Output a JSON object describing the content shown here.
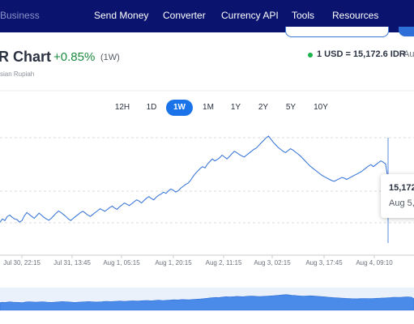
{
  "nav": {
    "brand": "Business",
    "items": [
      "Send Money",
      "Converter",
      "Currency API",
      "Tools",
      "Resources"
    ]
  },
  "header": {
    "title": "R Chart",
    "change": "+0.85%",
    "period": "(1W)",
    "subtitle": "sian Rupiah",
    "rate": "1 USD = 15,172.6 IDR",
    "rate_date": "Au"
  },
  "ranges": {
    "items": [
      "12H",
      "1D",
      "1W",
      "1M",
      "1Y",
      "2Y",
      "5Y",
      "10Y"
    ],
    "active": "1W"
  },
  "tooltip": {
    "value": "15,172",
    "date": "Aug 5,"
  },
  "colors": {
    "nav_bg": "#0a146e",
    "line": "#2f6fd6",
    "positive": "#1c8a3e",
    "active": "#1a73e8"
  },
  "chart_data": {
    "type": "line",
    "x_labels": [
      "Jul 30, 22:15",
      "Jul 31, 13:45",
      "Aug 1, 05:15",
      "Aug 1, 20:15",
      "Aug 2, 11:15",
      "Aug 3, 02:15",
      "Aug 3, 17:45",
      "Aug 4, 09:10"
    ],
    "series": [
      {
        "values": [
          15040,
          15050,
          15045,
          15058,
          15062,
          15055,
          15050,
          15048,
          15040,
          15045,
          15060,
          15070,
          15064,
          15058,
          15052,
          15060,
          15068,
          15062,
          15055,
          15050,
          15046,
          15052,
          15060,
          15068,
          15075,
          15070,
          15064,
          15058,
          15050,
          15045,
          15052,
          15058,
          15064,
          15070,
          15074,
          15068,
          15062,
          15058,
          15064,
          15070,
          15076,
          15082,
          15078,
          15074,
          15080,
          15086,
          15090,
          15084,
          15080,
          15088,
          15094,
          15100,
          15096,
          15092,
          15098,
          15104,
          15110,
          15106,
          15100,
          15108,
          15115,
          15120,
          15114,
          15110,
          15118,
          15124,
          15128,
          15134,
          15130,
          15138,
          15144,
          15140,
          15134,
          15138,
          15146,
          15152,
          15158,
          15162,
          15170,
          15182,
          15192,
          15200,
          15208,
          15214,
          15210,
          15222,
          15230,
          15238,
          15232,
          15236,
          15242,
          15250,
          15244,
          15238,
          15246,
          15254,
          15262,
          15258,
          15252,
          15248,
          15244,
          15250,
          15256,
          15262,
          15268,
          15272,
          15280,
          15288,
          15296,
          15304,
          15310,
          15300,
          15290,
          15282,
          15274,
          15268,
          15262,
          15258,
          15264,
          15270,
          15266,
          15260,
          15254,
          15248,
          15240,
          15232,
          15224,
          15216,
          15210,
          15204,
          15198,
          15192,
          15186,
          15182,
          15178,
          15174,
          15170,
          15168,
          15172,
          15176,
          15180,
          15178,
          15174,
          15178,
          15182,
          15186,
          15190,
          15194,
          15198,
          15204,
          15210,
          15216,
          15220,
          15214,
          15220,
          15226,
          15232,
          15228,
          15222,
          15172
        ]
      }
    ],
    "ylim": [
      15000,
      15330
    ],
    "grid": true,
    "legend": "none"
  }
}
